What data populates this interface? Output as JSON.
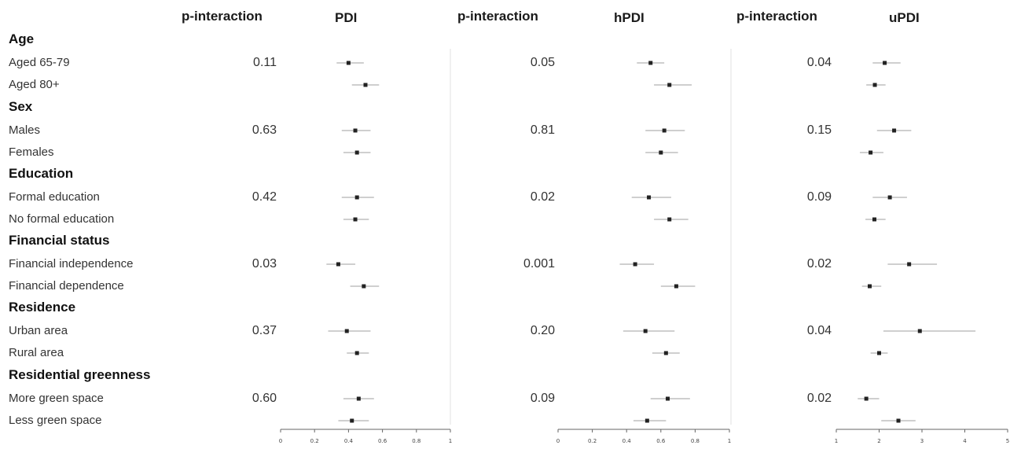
{
  "headers": {
    "p1": "p-interaction",
    "t1": "PDI",
    "p2": "p-interaction",
    "t2": "hPDI",
    "p3": "p-interaction",
    "t3": "uPDI"
  },
  "groups": [
    {
      "label": "Age",
      "subs": [
        "Aged 65-79",
        "Aged 80+"
      ],
      "p": [
        "0.11",
        "0.05",
        "0.04"
      ]
    },
    {
      "label": "Sex",
      "subs": [
        "Males",
        "Females"
      ],
      "p": [
        "0.63",
        "0.81",
        "0.15"
      ]
    },
    {
      "label": "Education",
      "subs": [
        "Formal education",
        "No formal education"
      ],
      "p": [
        "0.42",
        "0.02",
        "0.09"
      ]
    },
    {
      "label": "Financial status",
      "subs": [
        "Financial independence",
        "Financial dependence"
      ],
      "p": [
        "0.03",
        "0.001",
        "0.02"
      ]
    },
    {
      "label": "Residence",
      "subs": [
        "Urban area",
        "Rural area"
      ],
      "p": [
        "0.37",
        "0.20",
        "0.04"
      ]
    },
    {
      "label": "Residential greenness",
      "subs": [
        "More green space",
        "Less green space"
      ],
      "p": [
        "0.60",
        "0.09",
        "0.02"
      ]
    }
  ],
  "chart_data": [
    {
      "type": "scatter",
      "title": "PDI",
      "ticks": [
        "0",
        "0.2",
        "0.4",
        "0.6",
        "0.8",
        "1"
      ],
      "xlim": [
        0,
        1
      ],
      "rows": [
        "Aged 65-79",
        "Aged 80+",
        "Males",
        "Females",
        "Formal education",
        "No formal education",
        "Financial independence",
        "Financial dependence",
        "Urban area",
        "Rural area",
        "More green space",
        "Less green space"
      ],
      "est": [
        0.4,
        0.5,
        0.44,
        0.45,
        0.45,
        0.44,
        0.34,
        0.49,
        0.39,
        0.45,
        0.46,
        0.42
      ],
      "lower": [
        0.33,
        0.42,
        0.36,
        0.37,
        0.36,
        0.37,
        0.27,
        0.41,
        0.28,
        0.39,
        0.37,
        0.34
      ],
      "upper": [
        0.49,
        0.58,
        0.53,
        0.53,
        0.55,
        0.52,
        0.44,
        0.58,
        0.53,
        0.52,
        0.55,
        0.52
      ]
    },
    {
      "type": "scatter",
      "title": "hPDI",
      "ticks": [
        "0",
        "0.2",
        "0.4",
        "0.6",
        "0.8",
        "1"
      ],
      "xlim": [
        0,
        1
      ],
      "rows": [
        "Aged 65-79",
        "Aged 80+",
        "Males",
        "Females",
        "Formal education",
        "No formal education",
        "Financial independence",
        "Financial dependence",
        "Urban area",
        "Rural area",
        "More green space",
        "Less green space"
      ],
      "est": [
        0.54,
        0.65,
        0.62,
        0.6,
        0.53,
        0.65,
        0.45,
        0.69,
        0.51,
        0.63,
        0.64,
        0.52
      ],
      "lower": [
        0.46,
        0.56,
        0.51,
        0.51,
        0.43,
        0.56,
        0.36,
        0.6,
        0.38,
        0.55,
        0.54,
        0.44
      ],
      "upper": [
        0.62,
        0.78,
        0.74,
        0.7,
        0.66,
        0.76,
        0.56,
        0.8,
        0.68,
        0.71,
        0.77,
        0.63
      ]
    },
    {
      "type": "scatter",
      "title": "uPDI",
      "ticks": [
        "1",
        "2",
        "3",
        "4",
        "5"
      ],
      "xlim": [
        1,
        5
      ],
      "rows": [
        "Aged 65-79",
        "Aged 80+",
        "Males",
        "Females",
        "Formal education",
        "No formal education",
        "Financial independence",
        "Financial dependence",
        "Urban area",
        "Rural area",
        "More green space",
        "Less green space"
      ],
      "est": [
        2.13,
        1.9,
        2.35,
        1.8,
        2.25,
        1.89,
        2.7,
        1.78,
        2.95,
        2.0,
        1.7,
        2.45
      ],
      "lower": [
        1.85,
        1.7,
        1.95,
        1.55,
        1.85,
        1.68,
        2.2,
        1.6,
        2.1,
        1.8,
        1.5,
        2.05
      ],
      "upper": [
        2.5,
        2.15,
        2.75,
        2.1,
        2.65,
        2.15,
        3.35,
        2.05,
        4.25,
        2.2,
        2.0,
        2.85
      ]
    }
  ]
}
